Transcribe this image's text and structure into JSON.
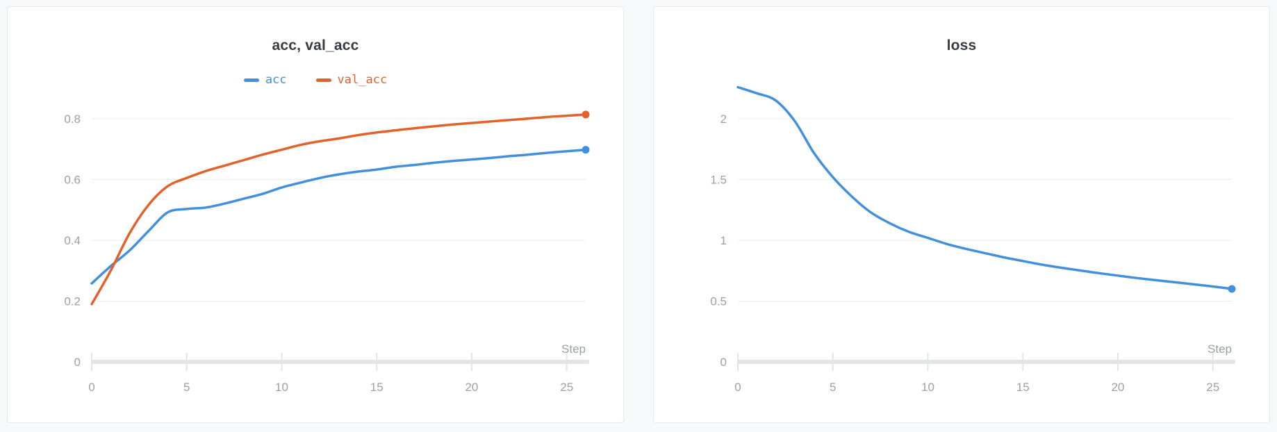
{
  "panels": {
    "left_title": "acc, val_acc",
    "right_title": "loss"
  },
  "colors": {
    "accent_blue": "#4290db",
    "accent_orange": "#e2622b",
    "title_text": "#363c44",
    "tick_text": "#9aa0a6",
    "gridline": "#ededee",
    "axis": "#e3e4e6",
    "card_background": "#ffffff",
    "page_background": "#f7f8f9"
  },
  "chart_data": [
    {
      "type": "line",
      "title": "acc, val_acc",
      "xlabel": "Step",
      "ylabel": "",
      "legend_position": "top",
      "grid": true,
      "xlim": [
        0,
        26
      ],
      "ylim": [
        0,
        0.88
      ],
      "x_ticks": [
        0,
        5,
        10,
        15,
        20,
        25
      ],
      "y_ticks": [
        0,
        0.2,
        0.4,
        0.6,
        0.8
      ],
      "x": [
        0,
        1,
        2,
        3,
        4,
        5,
        6,
        7,
        8,
        9,
        10,
        11,
        12,
        13,
        14,
        15,
        16,
        17,
        18,
        19,
        20,
        21,
        22,
        23,
        24,
        25,
        26
      ],
      "series": [
        {
          "name": "acc",
          "color": "#4290db",
          "end_marker": true,
          "values": [
            0.258,
            0.315,
            0.367,
            0.431,
            0.492,
            0.503,
            0.508,
            0.521,
            0.537,
            0.553,
            0.574,
            0.59,
            0.605,
            0.617,
            0.626,
            0.633,
            0.642,
            0.648,
            0.655,
            0.661,
            0.666,
            0.671,
            0.677,
            0.682,
            0.688,
            0.693,
            0.698
          ]
        },
        {
          "name": "val_acc",
          "color": "#e2622b",
          "end_marker": true,
          "values": [
            0.19,
            0.3,
            0.424,
            0.517,
            0.578,
            0.605,
            0.628,
            0.646,
            0.664,
            0.682,
            0.698,
            0.714,
            0.726,
            0.735,
            0.746,
            0.755,
            0.762,
            0.769,
            0.775,
            0.781,
            0.786,
            0.791,
            0.796,
            0.801,
            0.806,
            0.81,
            0.814
          ]
        }
      ]
    },
    {
      "type": "line",
      "title": "loss",
      "xlabel": "Step",
      "ylabel": "",
      "legend_position": "none",
      "grid": true,
      "xlim": [
        0,
        26
      ],
      "ylim": [
        0,
        2.4
      ],
      "x_ticks": [
        0,
        5,
        10,
        15,
        20,
        25
      ],
      "y_ticks": [
        0,
        0.5,
        1,
        1.5,
        2
      ],
      "x": [
        0,
        1,
        2,
        3,
        4,
        5,
        6,
        7,
        8,
        9,
        10,
        11,
        12,
        13,
        14,
        15,
        16,
        17,
        18,
        19,
        20,
        21,
        22,
        23,
        24,
        25,
        26
      ],
      "series": [
        {
          "name": "loss",
          "color": "#4290db",
          "end_marker": true,
          "values": [
            2.26,
            2.21,
            2.15,
            1.98,
            1.72,
            1.52,
            1.36,
            1.23,
            1.14,
            1.07,
            1.02,
            0.97,
            0.93,
            0.895,
            0.86,
            0.83,
            0.8,
            0.775,
            0.752,
            0.73,
            0.71,
            0.69,
            0.672,
            0.655,
            0.638,
            0.62,
            0.6
          ]
        }
      ]
    }
  ]
}
